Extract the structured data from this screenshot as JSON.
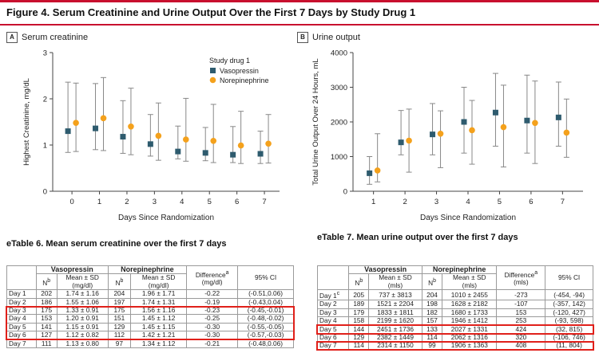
{
  "figure": {
    "title": "Figure 4. Serum Creatinine and Urine Output Over the First 7 Days by Study Drug 1"
  },
  "colors": {
    "accent": "#c8102e",
    "vasopressin": "#2e5b6e",
    "norepinephrine": "#f4a11c",
    "highlight": "#e0201a"
  },
  "chart_data": [
    {
      "type": "scatter",
      "panel": "A",
      "title": "Serum creatinine",
      "xlabel": "Days Since Randomization",
      "ylabel": "Highest Creatinine, mg/dL",
      "x_ticks": [
        0,
        1,
        2,
        3,
        4,
        5,
        6,
        7
      ],
      "ylim": [
        0,
        3
      ],
      "y_ticks": [
        0,
        1,
        2,
        3
      ],
      "grid": false,
      "legend_title": "Study drug 1",
      "legend_position": "top-right",
      "series": [
        {
          "name": "Vasopressin",
          "marker": "square",
          "x": [
            0,
            1,
            2,
            3,
            4,
            5,
            6,
            7
          ],
          "mean": [
            1.3,
            1.36,
            1.18,
            1.02,
            0.86,
            0.83,
            0.79,
            0.81
          ],
          "lower": [
            0.84,
            0.9,
            0.82,
            0.76,
            0.7,
            0.66,
            0.62,
            0.6
          ],
          "upper": [
            2.36,
            2.33,
            1.96,
            1.66,
            1.41,
            1.38,
            1.4,
            1.3
          ]
        },
        {
          "name": "Norepinephrine",
          "marker": "circle",
          "x": [
            0,
            1,
            2,
            3,
            4,
            5,
            6,
            7
          ],
          "mean": [
            1.48,
            1.58,
            1.4,
            1.2,
            1.12,
            1.09,
            0.99,
            1.03
          ],
          "lower": [
            0.86,
            0.88,
            0.79,
            0.67,
            0.65,
            0.62,
            0.6,
            0.61
          ],
          "upper": [
            2.34,
            2.46,
            2.23,
            1.91,
            2.01,
            1.88,
            1.73,
            1.66
          ]
        }
      ]
    },
    {
      "type": "scatter",
      "panel": "B",
      "title": "Urine output",
      "xlabel": "Days Since Randomization",
      "ylabel": "Total Urine Output Over 24 Hours, mL",
      "x_ticks": [
        1,
        2,
        3,
        4,
        5,
        6,
        7
      ],
      "ylim": [
        0,
        4000
      ],
      "y_ticks": [
        0,
        1000,
        2000,
        3000,
        4000
      ],
      "grid": false,
      "series": [
        {
          "name": "Vasopressin",
          "marker": "square",
          "x": [
            1,
            2,
            3,
            4,
            5,
            6,
            7
          ],
          "mean": [
            520,
            1410,
            1640,
            2000,
            2270,
            2040,
            2130
          ],
          "lower": [
            200,
            1050,
            1050,
            1100,
            1300,
            1100,
            1300
          ],
          "upper": [
            1000,
            2330,
            2530,
            3000,
            3400,
            3350,
            3150
          ]
        },
        {
          "name": "Norepinephrine",
          "marker": "circle",
          "x": [
            1,
            2,
            3,
            4,
            5,
            6,
            7
          ],
          "mean": [
            600,
            1460,
            1660,
            1760,
            1850,
            1970,
            1690
          ],
          "lower": [
            270,
            550,
            680,
            780,
            700,
            800,
            980
          ],
          "upper": [
            1660,
            2370,
            2320,
            2620,
            3060,
            3180,
            2660
          ]
        }
      ]
    }
  ],
  "table6": {
    "title": "eTable 6. Mean serum creatinine over the first 7 days",
    "group_vaso": "Vasopressin",
    "group_nor": "Norepinephrine",
    "n_label": "N",
    "n_sup": "b",
    "mean_label": "Mean ± SD",
    "unit": "(mg/dl)",
    "diff_label": "Difference",
    "diff_sup": "a",
    "ci_label": "95% CI",
    "rows": [
      {
        "day": "Day 1",
        "n1": "202",
        "m1": "1.74 ± 1.16",
        "n2": "204",
        "m2": "1.96 ± 1.71",
        "diff": "-0.22",
        "ci": "(-0.51,0.06)"
      },
      {
        "day": "Day 2",
        "n1": "186",
        "m1": "1.55 ± 1.06",
        "n2": "197",
        "m2": "1.74 ± 1.31",
        "diff": "-0.19",
        "ci": "(-0.43,0.04)"
      },
      {
        "day": "Day 3",
        "n1": "175",
        "m1": "1.33 ± 0.91",
        "n2": "175",
        "m2": "1.56 ± 1.16",
        "diff": "-0.23",
        "ci": "(-0.45,-0.01)"
      },
      {
        "day": "Day 4",
        "n1": "153",
        "m1": "1.20 ± 0.91",
        "n2": "151",
        "m2": "1.45 ± 1.12",
        "diff": "-0.25",
        "ci": "(-0.48,-0.02)"
      },
      {
        "day": "Day 5",
        "n1": "141",
        "m1": "1.15 ± 0.91",
        "n2": "129",
        "m2": "1.45 ± 1.15",
        "diff": "-0.30",
        "ci": "(-0.55,-0.05)"
      },
      {
        "day": "Day 6",
        "n1": "127",
        "m1": "1.12 ± 0.82",
        "n2": "112",
        "m2": "1.42 ± 1.21",
        "diff": "-0.30",
        "ci": "(-0.57,-0.03)"
      },
      {
        "day": "Day 7",
        "n1": "111",
        "m1": "1.13 ± 0.80",
        "n2": "97",
        "m2": "1.34 ± 1.12",
        "diff": "-0.21",
        "ci": "(-0.48,0.06)"
      }
    ]
  },
  "table7": {
    "title": "eTable 7. Mean urine output over the first 7 days",
    "group_vaso": "Vasopressin",
    "group_nor": "Norepinephrine",
    "n_label": "N",
    "n_sup": "b",
    "mean_label": "Mean ± SD",
    "unit": "(mls)",
    "diff_label": "Difference",
    "diff_sup": "a",
    "diff_unit": "(mls)",
    "ci_label": "95% CI",
    "rows": [
      {
        "day": "Day 1",
        "sup": "c",
        "n1": "205",
        "m1": "737 ± 3813",
        "n2": "204",
        "m2": "1010 ± 2455",
        "diff": "-273",
        "ci": "(-454, -94)"
      },
      {
        "day": "Day 2",
        "sup": "",
        "n1": "189",
        "m1": "1521 ± 2204",
        "n2": "198",
        "m2": "1628 ± 2182",
        "diff": "-107",
        "ci": "(-357, 142)"
      },
      {
        "day": "Day 3",
        "sup": "",
        "n1": "179",
        "m1": "1833 ± 1811",
        "n2": "182",
        "m2": "1680 ± 1733",
        "diff": "153",
        "ci": "(-120, 427)"
      },
      {
        "day": "Day 4",
        "sup": "",
        "n1": "158",
        "m1": "2199 ± 1620",
        "n2": "157",
        "m2": "1946 ± 1412",
        "diff": "253",
        "ci": "(-93, 598)"
      },
      {
        "day": "Day 5",
        "sup": "",
        "n1": "144",
        "m1": "2451 ± 1736",
        "n2": "133",
        "m2": "2027 ± 1331",
        "diff": "424",
        "ci": "(32, 815)"
      },
      {
        "day": "Day 6",
        "sup": "",
        "n1": "129",
        "m1": "2382 ± 1449",
        "n2": "114",
        "m2": "2062 ± 1316",
        "diff": "320",
        "ci": "(-106, 746)"
      },
      {
        "day": "Day 7",
        "sup": "",
        "n1": "114",
        "m1": "2314 ± 1150",
        "n2": "99",
        "m2": "1906 ± 1363",
        "diff": "408",
        "ci": "(11, 804)"
      }
    ]
  }
}
